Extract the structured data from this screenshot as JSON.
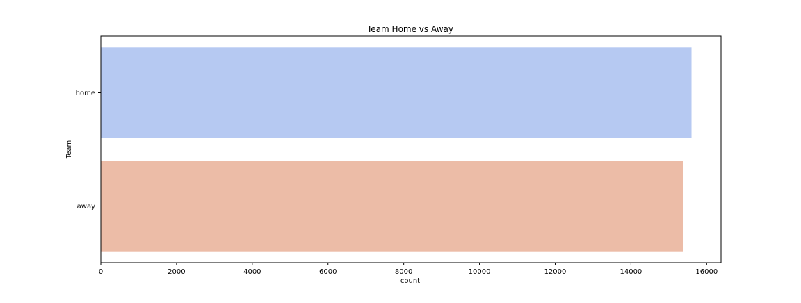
{
  "chart_data": {
    "type": "bar",
    "orientation": "horizontal",
    "title": "Team Home vs Away",
    "xlabel": "count",
    "ylabel": "Team",
    "categories": [
      "home",
      "away"
    ],
    "values": [
      15600,
      15380
    ],
    "xlim": [
      0,
      16380
    ],
    "xticks": [
      0,
      2000,
      4000,
      6000,
      8000,
      10000,
      12000,
      14000,
      16000
    ],
    "colors": [
      "#b6c9f2",
      "#ecbca7"
    ],
    "grid": false,
    "legend": "none"
  }
}
